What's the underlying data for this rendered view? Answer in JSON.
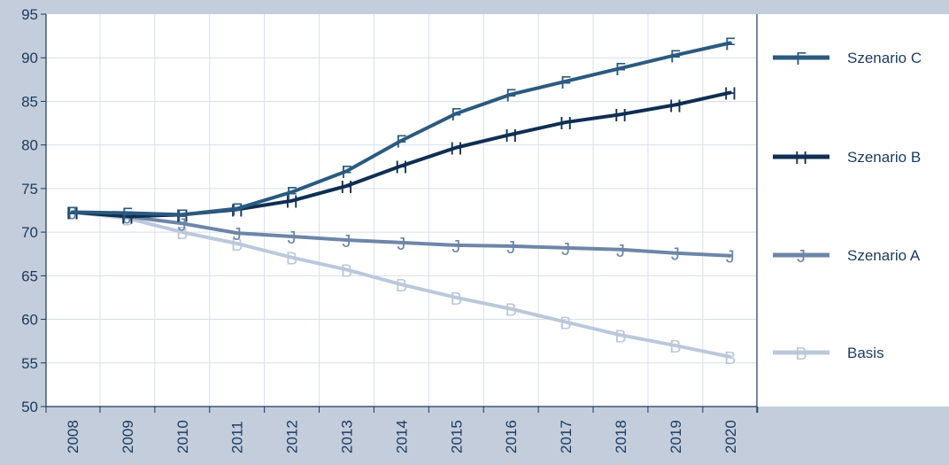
{
  "chart_data": {
    "type": "line",
    "title": "",
    "xlabel": "",
    "ylabel": "",
    "categories": [
      "2008",
      "2009",
      "2010",
      "2011",
      "2012",
      "2013",
      "2014",
      "2015",
      "2016",
      "2017",
      "2018",
      "2019",
      "2020"
    ],
    "ylim": [
      50,
      95
    ],
    "yticks": [
      50,
      55,
      60,
      65,
      70,
      75,
      80,
      85,
      90,
      95
    ],
    "grid": true,
    "legend_position": "right",
    "series": [
      {
        "name": "Szenario C",
        "marker": "F",
        "color": "#2b5a7e",
        "values": [
          72.3,
          72.2,
          72.0,
          72.7,
          74.6,
          77.0,
          80.5,
          83.6,
          85.8,
          87.3,
          88.8,
          90.3,
          91.7
        ]
      },
      {
        "name": "Szenario B",
        "marker": "H",
        "color": "#0f2e52",
        "values": [
          72.3,
          71.8,
          72.0,
          72.6,
          73.6,
          75.3,
          77.6,
          79.7,
          81.2,
          82.6,
          83.5,
          84.6,
          86.0
        ]
      },
      {
        "name": "Szenario A",
        "marker": "J",
        "color": "#6d86a8",
        "values": [
          72.3,
          71.8,
          71.0,
          69.9,
          69.5,
          69.1,
          68.8,
          68.5,
          68.4,
          68.2,
          68.0,
          67.6,
          67.3
        ]
      },
      {
        "name": "Basis",
        "marker": "B",
        "color": "#bcc8da",
        "values": [
          72.3,
          71.6,
          70.0,
          68.7,
          67.1,
          65.7,
          64.0,
          62.5,
          61.2,
          59.7,
          58.2,
          57.0,
          55.7
        ]
      }
    ]
  }
}
